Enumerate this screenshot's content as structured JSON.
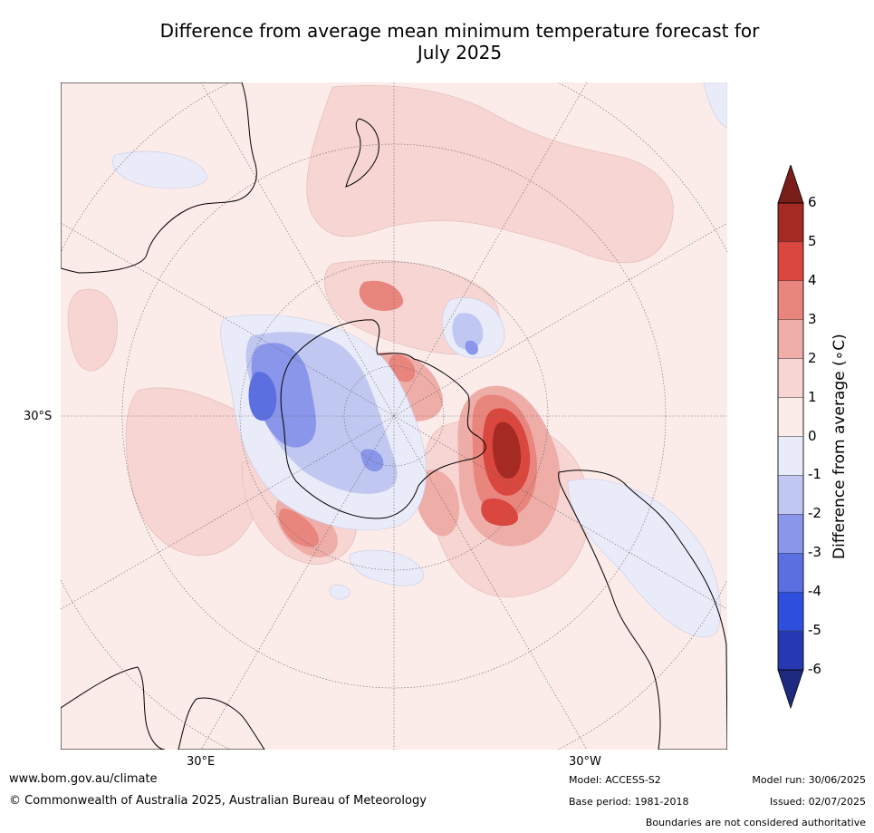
{
  "title_line1": "Difference from average mean minimum temperature forecast for",
  "title_line2": "July 2025",
  "colorbar": {
    "label": "Difference from average (∘C)",
    "ticks": [
      "6",
      "5",
      "4",
      "3",
      "2",
      "1",
      "0",
      "-1",
      "-2",
      "-3",
      "-4",
      "-5",
      "-6"
    ],
    "colors": [
      "#a52a24",
      "#d9473f",
      "#e8857d",
      "#eeada7",
      "#f6d5d2",
      "#fbebe9",
      "#e9ebf9",
      "#c0c8f2",
      "#8996ea",
      "#5b6fe0",
      "#2e4fde",
      "#2639b2"
    ],
    "over_color": "#7a1e1a",
    "under_color": "#1d2a80"
  },
  "axis_labels": {
    "lat_30s": "30°S",
    "lon_30e": "30°E",
    "lon_30w": "30°W"
  },
  "footer": {
    "website": "www.bom.gov.au/climate",
    "copyright": "© Commonwealth of Australia 2025, Australian Bureau of Meteorology",
    "model": "Model: ACCESS-S2",
    "base_period": "Base period: 1981-2018",
    "model_run": "Model run: 30/06/2025",
    "issued": "Issued: 02/07/2025",
    "disclaimer": "Boundaries are not considered authoritative"
  }
}
